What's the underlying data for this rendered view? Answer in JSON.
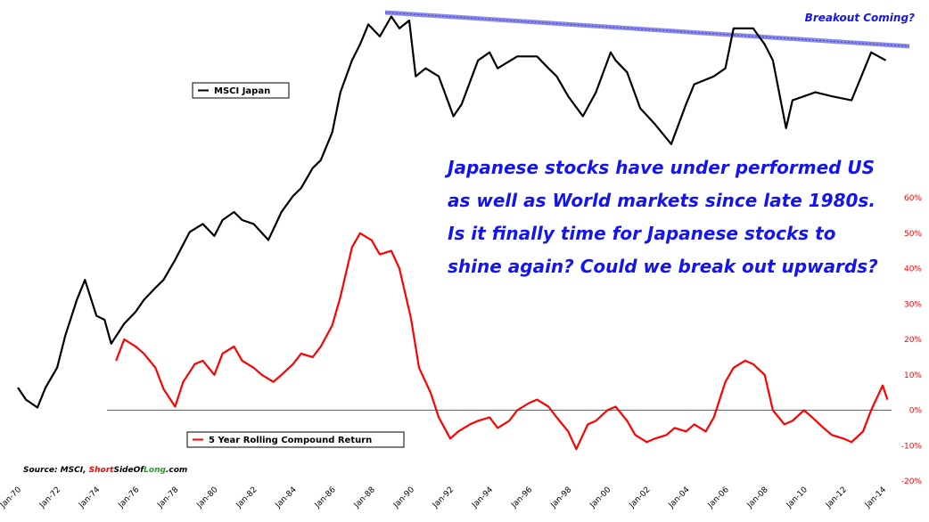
{
  "chart_data": {
    "type": "line",
    "title": "",
    "x_axis": {
      "type": "date",
      "range": [
        "1970-01",
        "2014-06"
      ],
      "tick_labels": [
        "Jan-70",
        "Jan-72",
        "Jan-74",
        "Jan-76",
        "Jan-78",
        "Jan-80",
        "Jan-82",
        "Jan-84",
        "Jan-86",
        "Jan-88",
        "Jan-90",
        "Jan-92",
        "Jan-94",
        "Jan-96",
        "Jan-98",
        "Jan-00",
        "Jan-02",
        "Jan-04",
        "Jan-06",
        "Jan-08",
        "Jan-10",
        "Jan-12",
        "Jan-14"
      ]
    },
    "y_axis_right": {
      "unit": "%",
      "range": [
        -20,
        60
      ],
      "tick_values": [
        60,
        50,
        40,
        30,
        20,
        10,
        0,
        -10,
        -20
      ],
      "tick_labels": [
        "60%",
        "50%",
        "40%",
        "30%",
        "20%",
        "10%",
        "0%",
        "-10%",
        "-20%"
      ]
    },
    "grid": false,
    "zero_line": true,
    "series": [
      {
        "name": "MSCI Japan",
        "color": "#000000",
        "axis": "left-unlabeled",
        "x": [
          "1970-01",
          "1970-06",
          "1971-01",
          "1971-06",
          "1972-01",
          "1972-06",
          "1973-01",
          "1973-06",
          "1974-01",
          "1974-06",
          "1974-10",
          "1975-06",
          "1976-01",
          "1976-06",
          "1977-01",
          "1977-06",
          "1978-01",
          "1978-10",
          "1979-06",
          "1980-01",
          "1980-06",
          "1981-01",
          "1981-06",
          "1982-01",
          "1982-10",
          "1983-06",
          "1984-01",
          "1984-06",
          "1985-01",
          "1985-06",
          "1986-01",
          "1986-06",
          "1987-01",
          "1987-06",
          "1987-11",
          "1988-06",
          "1989-01",
          "1989-06",
          "1989-12",
          "1990-04",
          "1990-10",
          "1991-06",
          "1992-03",
          "1992-08",
          "1993-06",
          "1994-01",
          "1994-06",
          "1995-06",
          "1996-06",
          "1997-01",
          "1997-06",
          "1998-01",
          "1998-10",
          "1999-06",
          "2000-03",
          "2000-06",
          "2001-01",
          "2001-09",
          "2002-06",
          "2003-04",
          "2004-01",
          "2004-06",
          "2005-06",
          "2006-01",
          "2006-06",
          "2007-06",
          "2008-01",
          "2008-06",
          "2009-02",
          "2009-06",
          "2010-01",
          "2010-08",
          "2011-06",
          "2012-06",
          "2013-01",
          "2013-06",
          "2014-03"
        ],
        "values": [
          6,
          3,
          1,
          6,
          11,
          19,
          28,
          33,
          24,
          23,
          17,
          22,
          25,
          28,
          31,
          33,
          38,
          45,
          47,
          44,
          48,
          50,
          48,
          47,
          43,
          50,
          54,
          56,
          61,
          63,
          70,
          80,
          88,
          92,
          97,
          94,
          99,
          96,
          98,
          84,
          86,
          84,
          74,
          77,
          88,
          90,
          86,
          89,
          89,
          86,
          84,
          79,
          74,
          80,
          90,
          88,
          85,
          76,
          72,
          67,
          77,
          82,
          84,
          86,
          96,
          96,
          92,
          88,
          71,
          78,
          79,
          80,
          79,
          78,
          85,
          90,
          88
        ]
      },
      {
        "name": "5 Year Rolling Compound Return",
        "color": "#ff0000",
        "axis": "right",
        "x": [
          "1975-01",
          "1975-06",
          "1976-01",
          "1976-06",
          "1977-01",
          "1977-06",
          "1978-01",
          "1978-06",
          "1979-01",
          "1979-06",
          "1980-01",
          "1980-06",
          "1981-01",
          "1981-06",
          "1982-01",
          "1982-06",
          "1983-01",
          "1983-06",
          "1984-01",
          "1984-06",
          "1985-01",
          "1985-06",
          "1986-01",
          "1986-06",
          "1987-01",
          "1987-06",
          "1988-01",
          "1988-06",
          "1989-01",
          "1989-06",
          "1990-01",
          "1990-06",
          "1991-01",
          "1991-06",
          "1992-01",
          "1992-06",
          "1993-01",
          "1993-06",
          "1994-01",
          "1994-06",
          "1995-01",
          "1995-06",
          "1996-01",
          "1996-06",
          "1997-01",
          "1997-06",
          "1998-01",
          "1998-06",
          "1999-01",
          "1999-06",
          "2000-01",
          "2000-06",
          "2001-01",
          "2001-06",
          "2002-01",
          "2002-06",
          "2003-01",
          "2003-06",
          "2004-01",
          "2004-06",
          "2005-01",
          "2005-06",
          "2006-01",
          "2006-06",
          "2007-01",
          "2007-06",
          "2008-01",
          "2008-06",
          "2009-01",
          "2009-06",
          "2010-01",
          "2010-06",
          "2011-01",
          "2011-06",
          "2012-01",
          "2012-06",
          "2013-01",
          "2013-06",
          "2014-01",
          "2014-04"
        ],
        "values": [
          14,
          20,
          18,
          16,
          12,
          6,
          1,
          8,
          13,
          14,
          10,
          16,
          18,
          14,
          12,
          10,
          8,
          10,
          13,
          16,
          15,
          18,
          24,
          32,
          46,
          50,
          48,
          44,
          45,
          40,
          26,
          12,
          5,
          -2,
          -8,
          -6,
          -4,
          -3,
          -2,
          -5,
          -3,
          0,
          2,
          3,
          1,
          -2,
          -6,
          -11,
          -4,
          -3,
          0,
          1,
          -3,
          -7,
          -9,
          -8,
          -7,
          -5,
          -6,
          -4,
          -6,
          -2,
          8,
          12,
          14,
          13,
          10,
          0,
          -4,
          -3,
          0,
          -2,
          -5,
          -7,
          -8,
          -9,
          -6,
          0,
          7,
          3
        ]
      }
    ],
    "legends": [
      {
        "label": "MSCI Japan",
        "color": "#000000",
        "placement": "upper-left"
      },
      {
        "label": "5 Year Rolling Compound Return",
        "color": "#ff0000",
        "placement": "lower-left"
      }
    ],
    "annotations": {
      "trendline_label": "Breakout Coming?",
      "trendline_color": "#8a8ae6",
      "note_lines": [
        "Japanese stocks have under performed US",
        "as well as World markets since late 1980s.",
        "Is it finally time for Japanese stocks to",
        "shine again? Could we break out upwards?"
      ],
      "note_color": "#1414f0"
    },
    "source": {
      "prefix": "Source: MSCI, ",
      "short": "Short",
      "side_of": "SideOf",
      "long": "Long",
      "suffix": ".com"
    }
  }
}
